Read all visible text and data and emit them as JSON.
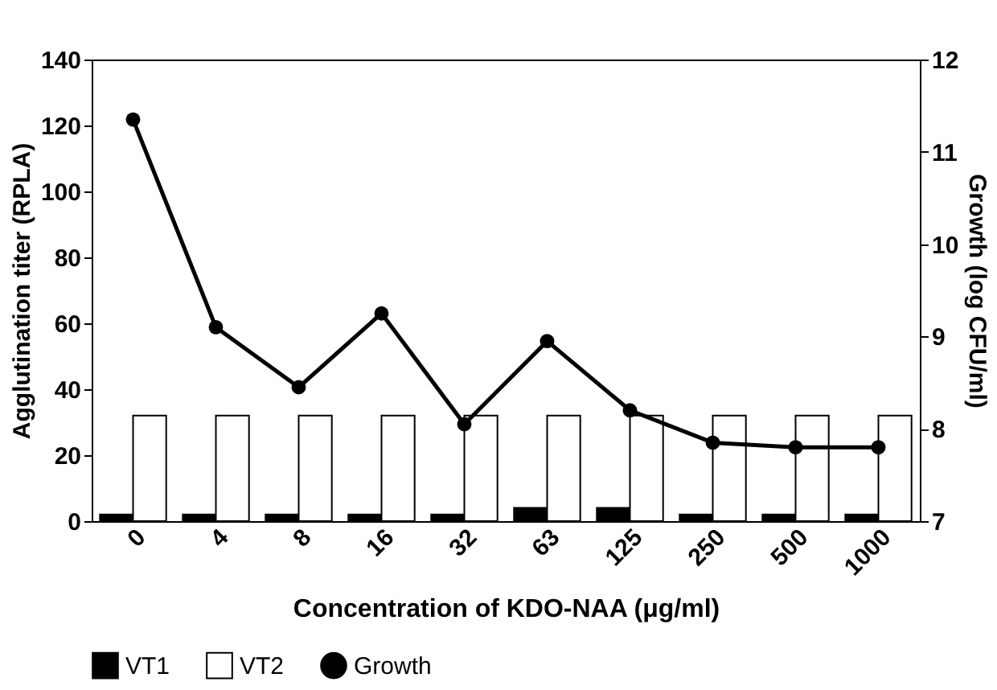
{
  "chart_data": {
    "type": "bar",
    "xlabel": "Concentration of KDO-NAA (μg/ml)",
    "ylabel": "Agglutination titer (RPLA)",
    "y2label": "Growth (log CFU/ml)",
    "categories": [
      "0",
      "4",
      "8",
      "16",
      "32",
      "63",
      "125",
      "250",
      "500",
      "1000"
    ],
    "series": [
      {
        "name": "VT1",
        "color": "#000000",
        "values": [
          2,
          2,
          2,
          2,
          2,
          4,
          4,
          2,
          2,
          2
        ]
      },
      {
        "name": "VT2",
        "color": "#ffffff",
        "values": [
          32,
          32,
          32,
          32,
          32,
          32,
          32,
          32,
          32,
          32
        ]
      },
      {
        "name": "Growth",
        "type": "line",
        "axis": "y2",
        "color": "#000000",
        "marker": "circle",
        "values": [
          11.35,
          9.1,
          8.45,
          9.25,
          8.05,
          8.95,
          8.2,
          7.85,
          7.8,
          7.8
        ]
      }
    ],
    "ylim": [
      0,
      140
    ],
    "yticks": [
      0,
      20,
      40,
      60,
      80,
      100,
      120,
      140
    ],
    "y2lim": [
      7,
      12
    ],
    "y2ticks": [
      7,
      8,
      9,
      10,
      11,
      12
    ],
    "grid": false,
    "legend": "bottom"
  }
}
